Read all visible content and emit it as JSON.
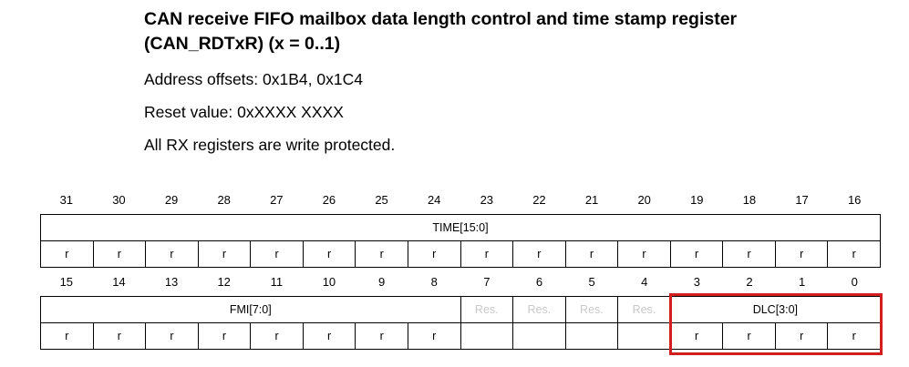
{
  "header": {
    "title_line1": "CAN receive FIFO mailbox data length control and time stamp register",
    "title_line2": "(CAN_RDTxR) (x = 0..1)",
    "address_offsets": "Address offsets: 0x1B4, 0x1C4",
    "reset_value": "Reset value: 0xXXXX XXXX",
    "note": "All RX registers are write protected."
  },
  "upper_half": {
    "bit_numbers": [
      "31",
      "30",
      "29",
      "28",
      "27",
      "26",
      "25",
      "24",
      "23",
      "22",
      "21",
      "20",
      "19",
      "18",
      "17",
      "16"
    ],
    "fields": [
      {
        "name": "TIME[15:0]",
        "span": 16
      }
    ],
    "access": [
      "r",
      "r",
      "r",
      "r",
      "r",
      "r",
      "r",
      "r",
      "r",
      "r",
      "r",
      "r",
      "r",
      "r",
      "r",
      "r"
    ]
  },
  "lower_half": {
    "bit_numbers": [
      "15",
      "14",
      "13",
      "12",
      "11",
      "10",
      "9",
      "8",
      "7",
      "6",
      "5",
      "4",
      "3",
      "2",
      "1",
      "0"
    ],
    "fields": [
      {
        "name": "FMI[7:0]",
        "span": 8
      },
      {
        "name": "Res.",
        "span": 1,
        "reserved": true
      },
      {
        "name": "Res.",
        "span": 1,
        "reserved": true
      },
      {
        "name": "Res.",
        "span": 1,
        "reserved": true
      },
      {
        "name": "Res.",
        "span": 1,
        "reserved": true
      },
      {
        "name": "DLC[3:0]",
        "span": 4
      }
    ],
    "access": [
      "r",
      "r",
      "r",
      "r",
      "r",
      "r",
      "r",
      "r",
      "",
      "",
      "",
      "",
      "r",
      "r",
      "r",
      "r"
    ]
  },
  "highlight": {
    "target_field": "DLC[3:0]",
    "color": "#d11e1e"
  }
}
